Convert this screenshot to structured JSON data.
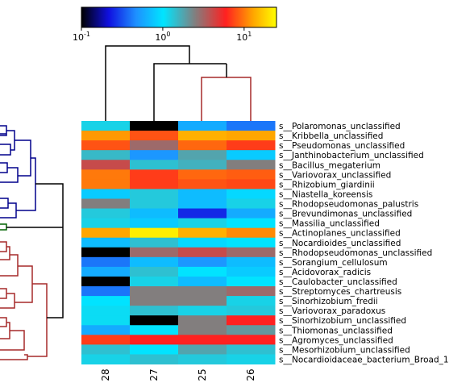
{
  "chart_data": {
    "type": "heatmap",
    "colorbar": {
      "scale": "log",
      "range": [
        0.1,
        25
      ],
      "ticks": [
        {
          "value": 0.1,
          "base": "10",
          "exp": "-1"
        },
        {
          "value": 1,
          "base": "10",
          "exp": "0"
        },
        {
          "value": 10,
          "base": "10",
          "exp": "1"
        }
      ],
      "colors": [
        "#000000",
        "#1010e0",
        "#1e90ff",
        "#00e5ff",
        "#808080",
        "#ff2020",
        "#ffa500",
        "#ffff00"
      ]
    },
    "columns": [
      "28",
      "27",
      "25",
      "26"
    ],
    "rows": [
      {
        "label": "s__Polaromonas_unclassified",
        "values": [
          1.2,
          0.1,
          0.6,
          0.4
        ]
      },
      {
        "label": "s__Kribbella_unclassified",
        "values": [
          12,
          8,
          14,
          13
        ]
      },
      {
        "label": "s__Pseudomonas_unclassified",
        "values": [
          8,
          3,
          9,
          7
        ]
      },
      {
        "label": "s__Janthinobacterium_unclassified",
        "values": [
          1.5,
          0.5,
          1.8,
          0.8
        ]
      },
      {
        "label": "s__Bacillus_megaterium",
        "values": [
          4,
          1.4,
          1.6,
          2.5
        ]
      },
      {
        "label": "s__Variovorax_unclassified",
        "values": [
          10,
          7,
          9,
          8.5
        ]
      },
      {
        "label": "s__Rhizobium_giardinii",
        "values": [
          10,
          7,
          8,
          7.5
        ]
      },
      {
        "label": "s__Niastella_koreensis",
        "values": [
          0.8,
          1.3,
          0.7,
          0.9
        ]
      },
      {
        "label": "s__Rhodopseudomonas_palustris",
        "values": [
          2.5,
          1.3,
          0.7,
          1.2
        ]
      },
      {
        "label": "s__Brevundimonas_unclassified",
        "values": [
          1.3,
          0.7,
          0.25,
          0.6
        ]
      },
      {
        "label": "s__Massilia_unclassified",
        "values": [
          1.2,
          0.8,
          1.2,
          1.0
        ]
      },
      {
        "label": "s__Actinoplanes_unclassified",
        "values": [
          13,
          22,
          14,
          11
        ]
      },
      {
        "label": "s__Nocardioides_unclassified",
        "values": [
          0.7,
          1.4,
          0.9,
          1.0
        ]
      },
      {
        "label": "s__Rhodopseudomonas_unclassified",
        "values": [
          0.1,
          3,
          4,
          3
        ]
      },
      {
        "label": "s__Sorangium_cellulosum",
        "values": [
          0.4,
          0.7,
          0.5,
          0.7
        ]
      },
      {
        "label": "s__Acidovorax_radicis",
        "values": [
          0.6,
          1.4,
          1.0,
          0.8
        ]
      },
      {
        "label": "s__Caulobacter_unclassified",
        "values": [
          0.1,
          1.2,
          0.7,
          1.0
        ]
      },
      {
        "label": "s__Streptomyces_chartreusis",
        "values": [
          0.4,
          2.5,
          2.5,
          3
        ]
      },
      {
        "label": "s__Sinorhizobium_fredii",
        "values": [
          1.0,
          2.5,
          2.5,
          1.2
        ]
      },
      {
        "label": "s__Variovorax_paradoxus",
        "values": [
          1.1,
          1.4,
          1.2,
          1.3
        ]
      },
      {
        "label": "s__Sinorhizobium_unclassified",
        "values": [
          1.1,
          0.1,
          2.5,
          6
        ]
      },
      {
        "label": "s__Thiomonas_unclassified",
        "values": [
          0.6,
          1.0,
          2.5,
          2.0
        ]
      },
      {
        "label": "s__Agromyces_unclassified",
        "values": [
          7,
          6,
          6,
          6
        ]
      },
      {
        "label": "s__Mesorhizobium_unclassified",
        "values": [
          1.4,
          1.0,
          1.8,
          1.4
        ]
      },
      {
        "label": "s__Nocardioidaceae_bacterium_Broad_1",
        "values": [
          1.2,
          1.4,
          1.3,
          1.2
        ]
      }
    ],
    "column_dendrogram": {
      "clusters": [
        [
          "28"
        ],
        [
          "27"
        ],
        [
          "25",
          "26"
        ]
      ]
    },
    "row_dendrogram": {
      "groups": [
        "blue",
        "green",
        "brown"
      ]
    }
  }
}
